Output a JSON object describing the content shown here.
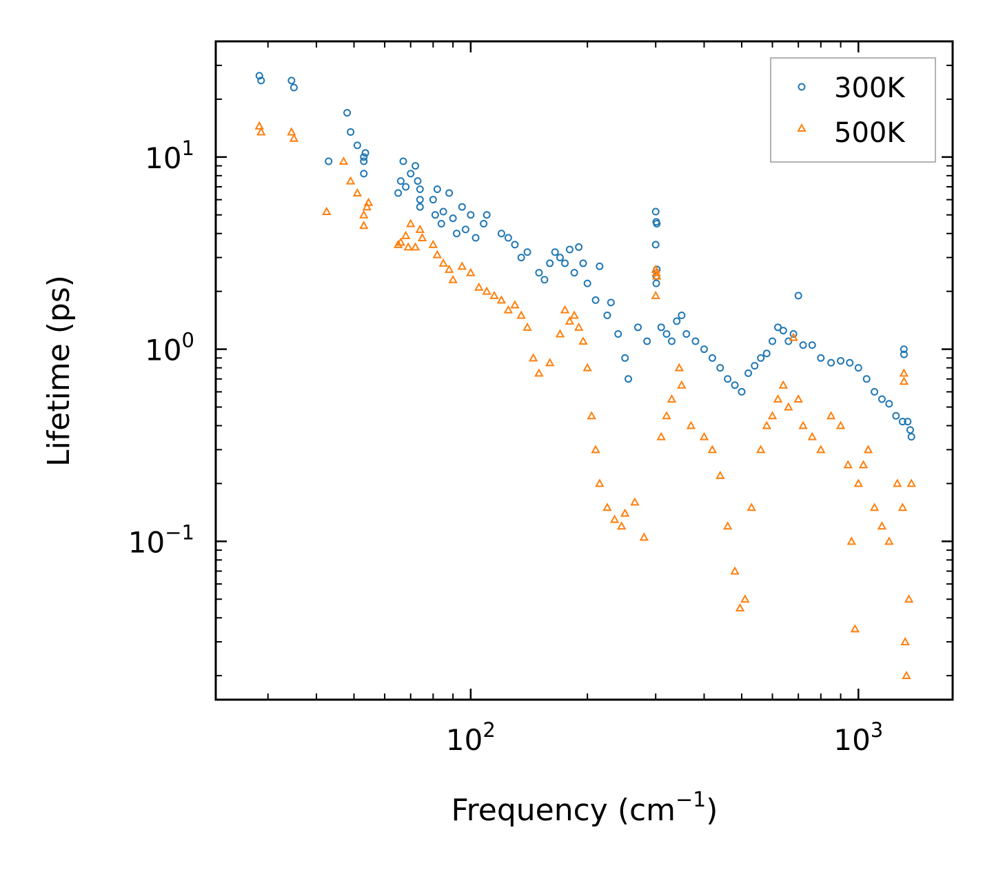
{
  "chart_data": {
    "type": "scatter",
    "title": "",
    "xlabel": "Frequency (cm",
    "xlabel_sup": "−1",
    "xlabel_tail": ")",
    "ylabel": "Lifetime (ps)",
    "xscale": "log",
    "yscale": "log",
    "xlim": [
      22,
      1750
    ],
    "ylim": [
      0.015,
      40
    ],
    "x_ticks": [
      {
        "value": 100,
        "base": "10",
        "exp": "2"
      },
      {
        "value": 1000,
        "base": "10",
        "exp": "3"
      }
    ],
    "y_ticks": [
      {
        "value": 0.1,
        "base": "10",
        "exp": "−1"
      },
      {
        "value": 1,
        "base": "10",
        "exp": "0"
      },
      {
        "value": 10,
        "base": "10",
        "exp": "1"
      }
    ],
    "legend_position": "top-right",
    "series": [
      {
        "name": "300K",
        "marker": "circle",
        "color": "#1f77b4",
        "points": [
          [
            28.5,
            26.5
          ],
          [
            28.8,
            25
          ],
          [
            34.5,
            25
          ],
          [
            35,
            23
          ],
          [
            43,
            9.5
          ],
          [
            48,
            17
          ],
          [
            49,
            13.5
          ],
          [
            51,
            11.5
          ],
          [
            53,
            10
          ],
          [
            53,
            9.5
          ],
          [
            53.5,
            10.5
          ],
          [
            53,
            8.2
          ],
          [
            65,
            6.5
          ],
          [
            66,
            7.5
          ],
          [
            67,
            9.5
          ],
          [
            68,
            7
          ],
          [
            70,
            8.2
          ],
          [
            72,
            9
          ],
          [
            73,
            7.5
          ],
          [
            74,
            6.8
          ],
          [
            74,
            5.5
          ],
          [
            74,
            6
          ],
          [
            80,
            6
          ],
          [
            81,
            5
          ],
          [
            82,
            6.8
          ],
          [
            84,
            4.5
          ],
          [
            85,
            5.2
          ],
          [
            88,
            6.5
          ],
          [
            90,
            4.8
          ],
          [
            92,
            4
          ],
          [
            95,
            5.5
          ],
          [
            97,
            4.2
          ],
          [
            100,
            5
          ],
          [
            103,
            3.8
          ],
          [
            108,
            4.5
          ],
          [
            110,
            5
          ],
          [
            120,
            4
          ],
          [
            125,
            3.8
          ],
          [
            130,
            3.5
          ],
          [
            135,
            3
          ],
          [
            140,
            3.2
          ],
          [
            150,
            2.5
          ],
          [
            155,
            2.3
          ],
          [
            160,
            2.8
          ],
          [
            165,
            3.2
          ],
          [
            170,
            3
          ],
          [
            175,
            2.8
          ],
          [
            180,
            3.3
          ],
          [
            185,
            2.5
          ],
          [
            190,
            3.4
          ],
          [
            195,
            2.8
          ],
          [
            200,
            2.2
          ],
          [
            210,
            1.8
          ],
          [
            215,
            2.7
          ],
          [
            225,
            1.5
          ],
          [
            230,
            1.75
          ],
          [
            240,
            1.2
          ],
          [
            250,
            0.9
          ],
          [
            255,
            0.7
          ],
          [
            270,
            1.3
          ],
          [
            285,
            1.1
          ],
          [
            300,
            5.2
          ],
          [
            301,
            4.6
          ],
          [
            302,
            4.5
          ],
          [
            300,
            3.5
          ],
          [
            302,
            2.6
          ],
          [
            301,
            2.2
          ],
          [
            301,
            2.4
          ],
          [
            310,
            1.3
          ],
          [
            320,
            1.2
          ],
          [
            330,
            1.1
          ],
          [
            340,
            1.4
          ],
          [
            350,
            1.5
          ],
          [
            360,
            1.2
          ],
          [
            380,
            1.1
          ],
          [
            400,
            1
          ],
          [
            420,
            0.9
          ],
          [
            440,
            0.8
          ],
          [
            460,
            0.7
          ],
          [
            480,
            0.65
          ],
          [
            500,
            0.6
          ],
          [
            520,
            0.75
          ],
          [
            540,
            0.82
          ],
          [
            560,
            0.9
          ],
          [
            580,
            0.95
          ],
          [
            600,
            1.1
          ],
          [
            620,
            1.3
          ],
          [
            640,
            1.25
          ],
          [
            660,
            1.1
          ],
          [
            680,
            1.2
          ],
          [
            700,
            1.9
          ],
          [
            720,
            1.05
          ],
          [
            760,
            1.05
          ],
          [
            800,
            0.9
          ],
          [
            850,
            0.85
          ],
          [
            900,
            0.87
          ],
          [
            950,
            0.85
          ],
          [
            1000,
            0.8
          ],
          [
            1050,
            0.7
          ],
          [
            1100,
            0.6
          ],
          [
            1150,
            0.55
          ],
          [
            1200,
            0.52
          ],
          [
            1250,
            0.45
          ],
          [
            1300,
            0.42
          ],
          [
            1310,
            1
          ],
          [
            1311,
            0.94
          ],
          [
            1340,
            0.42
          ],
          [
            1360,
            0.38
          ],
          [
            1370,
            0.35
          ]
        ]
      },
      {
        "name": "500K",
        "marker": "triangle",
        "color": "#ff7f0e",
        "points": [
          [
            28.5,
            14.5
          ],
          [
            28.8,
            13.5
          ],
          [
            34.5,
            13.5
          ],
          [
            35,
            12.5
          ],
          [
            42.5,
            5.2
          ],
          [
            47,
            9.5
          ],
          [
            49,
            7.5
          ],
          [
            51,
            6.5
          ],
          [
            53,
            5
          ],
          [
            54,
            5.5
          ],
          [
            54.5,
            5.8
          ],
          [
            53,
            4.4
          ],
          [
            65,
            3.5
          ],
          [
            66,
            3.6
          ],
          [
            68,
            3.9
          ],
          [
            69,
            3.4
          ],
          [
            70,
            4.5
          ],
          [
            72,
            3.4
          ],
          [
            74,
            4.2
          ],
          [
            75,
            3.8
          ],
          [
            80,
            3.5
          ],
          [
            82,
            3.1
          ],
          [
            85,
            2.8
          ],
          [
            88,
            2.6
          ],
          [
            90,
            2.3
          ],
          [
            95,
            2.7
          ],
          [
            100,
            2.5
          ],
          [
            105,
            2.1
          ],
          [
            110,
            2
          ],
          [
            115,
            1.9
          ],
          [
            120,
            1.8
          ],
          [
            125,
            1.6
          ],
          [
            130,
            1.7
          ],
          [
            135,
            1.5
          ],
          [
            140,
            1.3
          ],
          [
            145,
            0.9
          ],
          [
            150,
            0.75
          ],
          [
            160,
            0.85
          ],
          [
            170,
            1.2
          ],
          [
            175,
            1.6
          ],
          [
            180,
            1.4
          ],
          [
            185,
            1.5
          ],
          [
            190,
            1.3
          ],
          [
            195,
            1.1
          ],
          [
            200,
            0.8
          ],
          [
            205,
            0.45
          ],
          [
            210,
            0.3
          ],
          [
            215,
            0.2
          ],
          [
            225,
            0.15
          ],
          [
            235,
            0.13
          ],
          [
            245,
            0.12
          ],
          [
            250,
            0.14
          ],
          [
            265,
            0.16
          ],
          [
            280,
            0.105
          ],
          [
            300,
            2.6
          ],
          [
            301,
            2.5
          ],
          [
            302,
            2.4
          ],
          [
            300,
            1.9
          ],
          [
            310,
            0.35
          ],
          [
            320,
            0.45
          ],
          [
            330,
            0.55
          ],
          [
            345,
            0.8
          ],
          [
            350,
            0.65
          ],
          [
            370,
            0.4
          ],
          [
            400,
            0.35
          ],
          [
            420,
            0.3
          ],
          [
            440,
            0.22
          ],
          [
            460,
            0.12
          ],
          [
            480,
            0.07
          ],
          [
            495,
            0.045
          ],
          [
            510,
            0.05
          ],
          [
            530,
            0.15
          ],
          [
            560,
            0.3
          ],
          [
            580,
            0.4
          ],
          [
            600,
            0.45
          ],
          [
            620,
            0.55
          ],
          [
            640,
            0.65
          ],
          [
            660,
            0.5
          ],
          [
            680,
            1.15
          ],
          [
            700,
            0.55
          ],
          [
            720,
            0.4
          ],
          [
            760,
            0.35
          ],
          [
            800,
            0.3
          ],
          [
            850,
            0.45
          ],
          [
            900,
            0.4
          ],
          [
            940,
            0.25
          ],
          [
            960,
            0.1
          ],
          [
            980,
            0.035
          ],
          [
            1000,
            0.2
          ],
          [
            1030,
            0.25
          ],
          [
            1060,
            0.3
          ],
          [
            1100,
            0.15
          ],
          [
            1150,
            0.12
          ],
          [
            1200,
            0.1
          ],
          [
            1260,
            0.2
          ],
          [
            1300,
            0.15
          ],
          [
            1310,
            0.75
          ],
          [
            1311,
            0.68
          ],
          [
            1320,
            0.03
          ],
          [
            1330,
            0.02
          ],
          [
            1350,
            0.05
          ],
          [
            1370,
            0.2
          ]
        ]
      }
    ]
  }
}
